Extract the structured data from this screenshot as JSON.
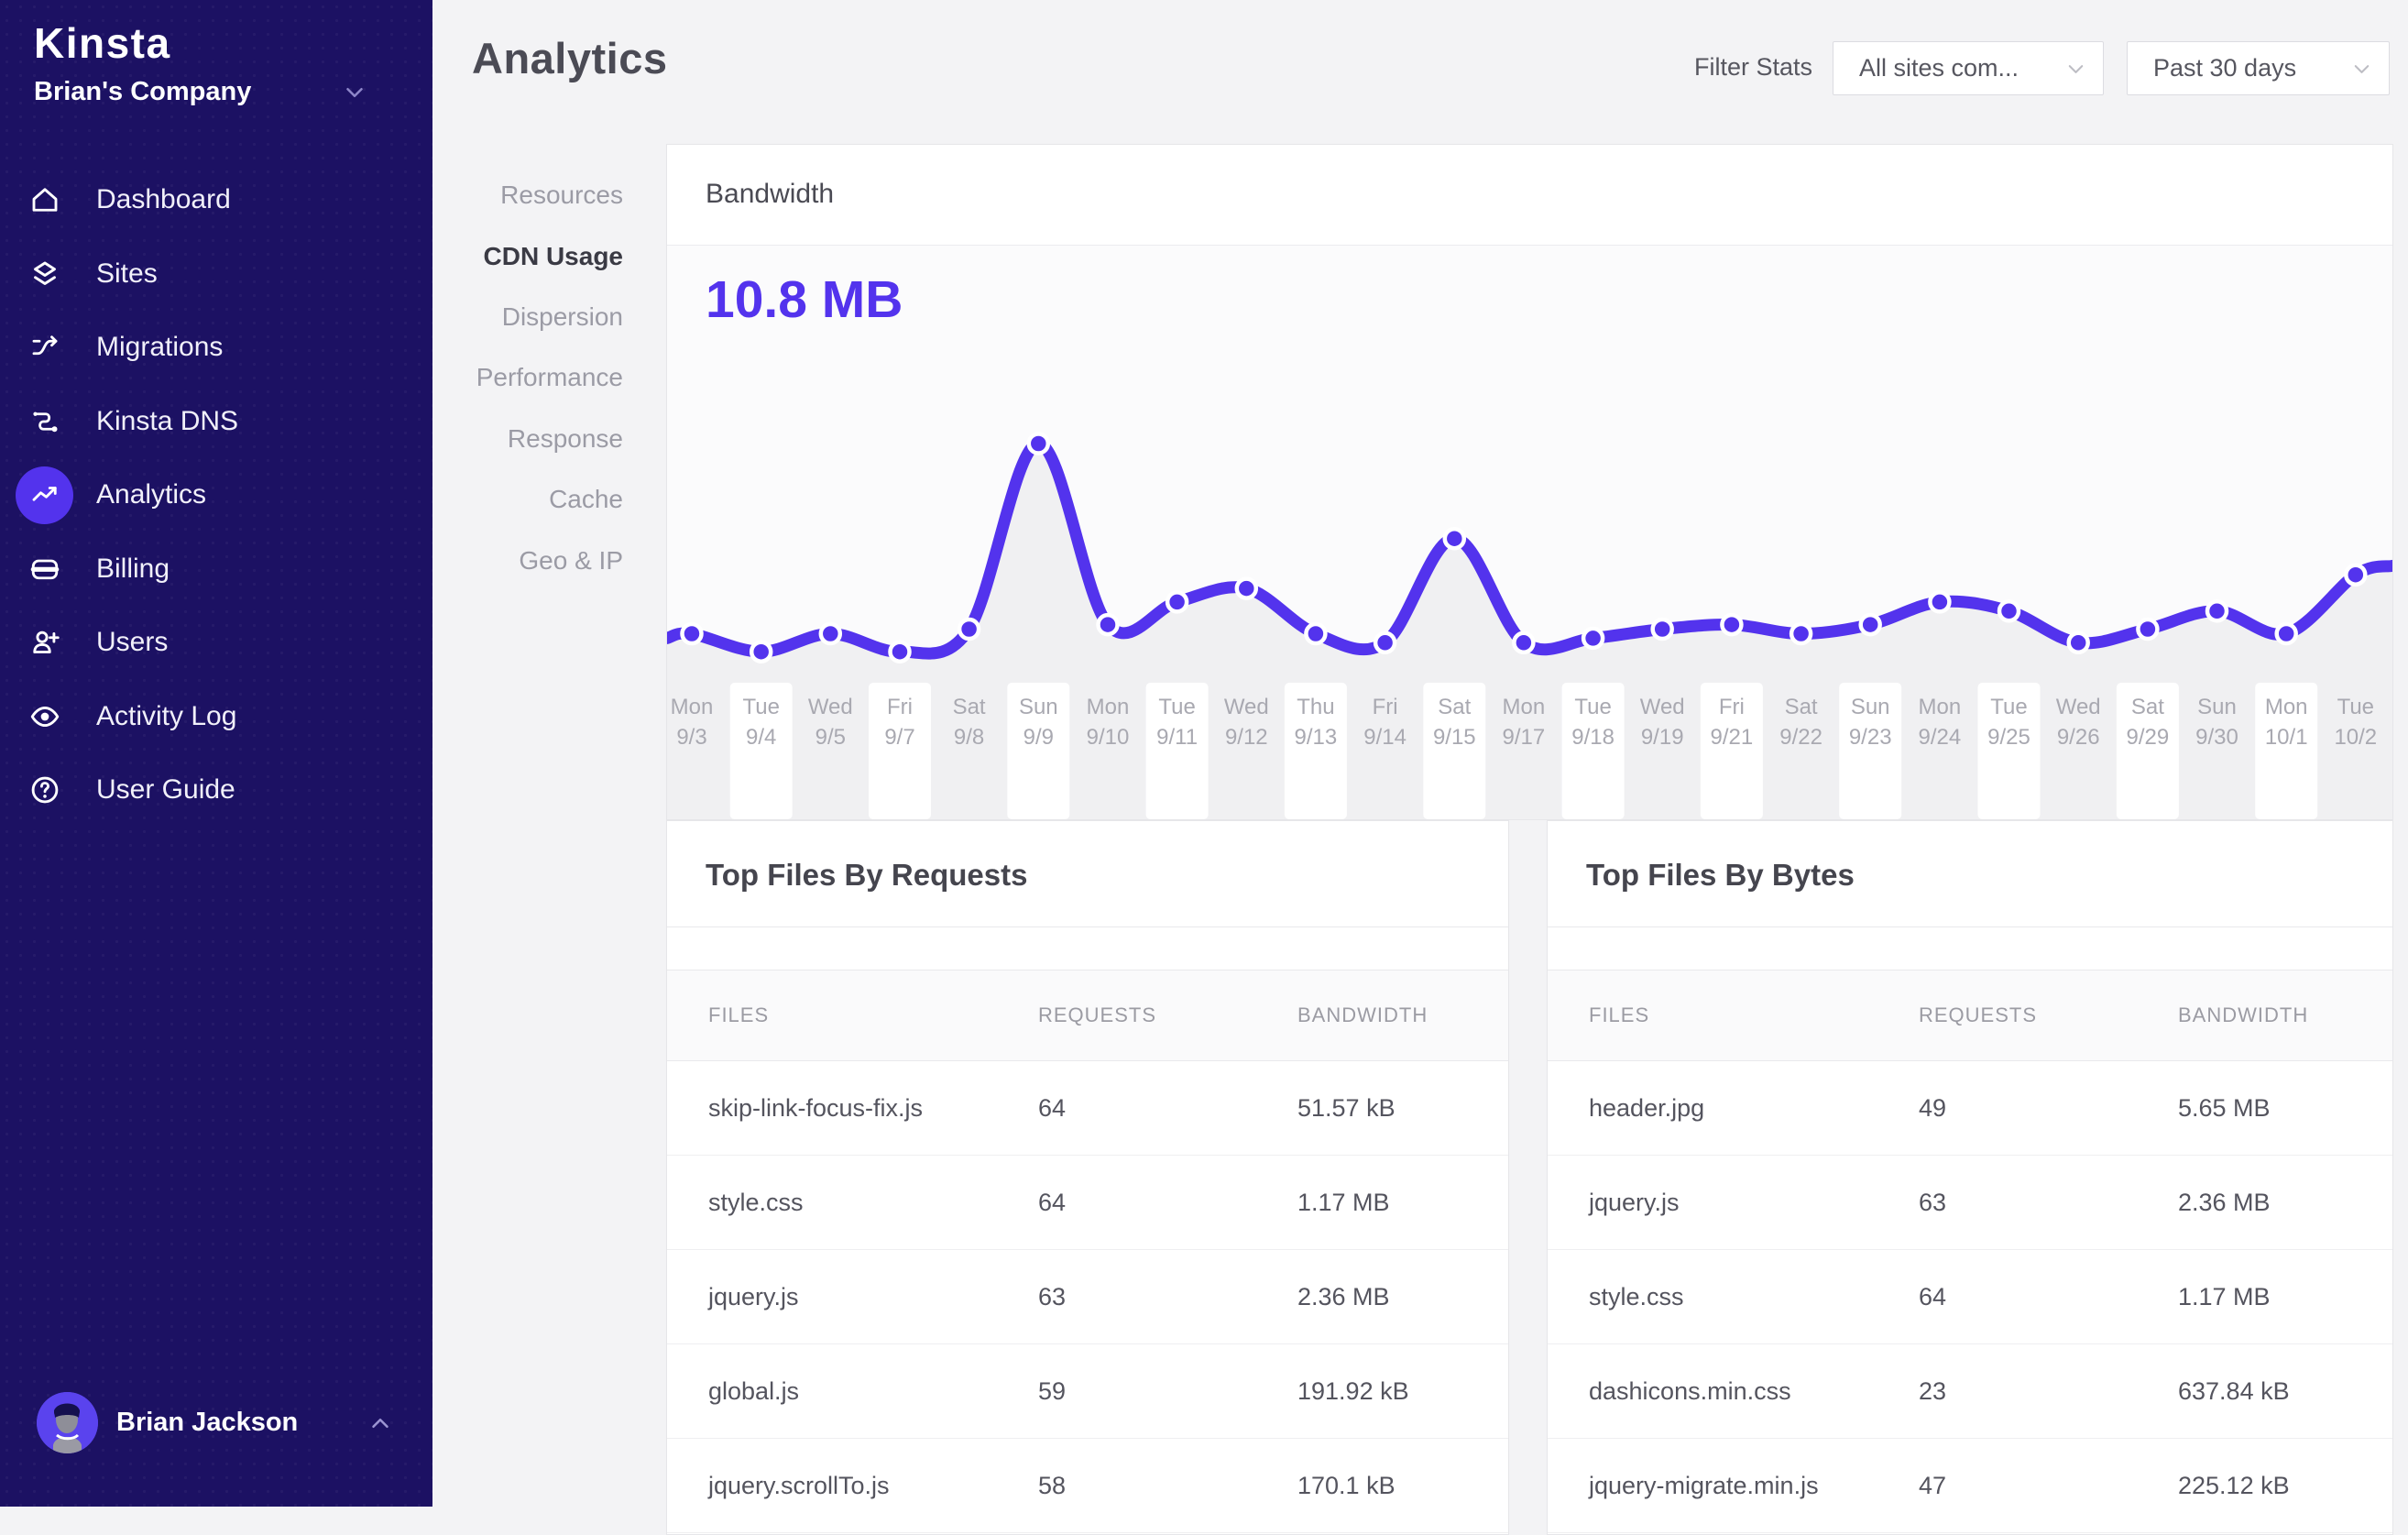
{
  "brand": {
    "logo_text": "Kinsta",
    "company": "Brian's Company"
  },
  "sidebar": {
    "items": [
      {
        "label": "Dashboard",
        "icon": "home-icon",
        "active": false
      },
      {
        "label": "Sites",
        "icon": "layers-icon",
        "active": false
      },
      {
        "label": "Migrations",
        "icon": "migrations-icon",
        "active": false
      },
      {
        "label": "Kinsta DNS",
        "icon": "dns-icon",
        "active": false
      },
      {
        "label": "Analytics",
        "icon": "analytics-icon",
        "active": true
      },
      {
        "label": "Billing",
        "icon": "billing-icon",
        "active": false
      },
      {
        "label": "Users",
        "icon": "user-add-icon",
        "active": false
      },
      {
        "label": "Activity Log",
        "icon": "eye-icon",
        "active": false
      },
      {
        "label": "User Guide",
        "icon": "help-circle-icon",
        "active": false
      }
    ],
    "user": {
      "name": "Brian Jackson"
    }
  },
  "header": {
    "title": "Analytics",
    "filter_label": "Filter Stats",
    "site_filter_value": "All sites com...",
    "range_filter_value": "Past 30 days"
  },
  "subnav": {
    "items": [
      "Resources",
      "CDN Usage",
      "Dispersion",
      "Performance",
      "Response",
      "Cache",
      "Geo & IP"
    ],
    "active_index": 1
  },
  "bandwidth_card": {
    "title": "Bandwidth",
    "total": "10.8 MB"
  },
  "chart_data": {
    "type": "line",
    "title": "Bandwidth",
    "total_label": "10.8 MB",
    "x_labels_day": [
      "Mon",
      "Tue",
      "Wed",
      "Fri",
      "Sat",
      "Sun",
      "Mon",
      "Tue",
      "Wed",
      "Thu",
      "Fri",
      "Sat",
      "Mon",
      "Tue",
      "Wed",
      "Fri",
      "Sat",
      "Sun",
      "Mon",
      "Tue",
      "Wed",
      "Sat",
      "Sun",
      "Mon",
      "Tue"
    ],
    "x_labels_date": [
      "9/3",
      "9/4",
      "9/5",
      "9/7",
      "9/8",
      "9/9",
      "9/10",
      "9/11",
      "9/12",
      "9/13",
      "9/14",
      "9/15",
      "9/17",
      "9/18",
      "9/19",
      "9/21",
      "9/22",
      "9/23",
      "9/24",
      "9/25",
      "9/26",
      "9/29",
      "9/30",
      "10/1",
      "10/2"
    ],
    "values_percent": [
      41,
      37,
      41,
      37,
      42,
      83,
      43,
      48,
      51,
      41,
      39,
      62,
      39,
      40,
      42,
      43,
      41,
      43,
      48,
      46,
      39,
      42,
      46,
      41,
      54
    ],
    "ylim": [
      0,
      100
    ],
    "y_axis_shown": false,
    "grid": false,
    "legend": "none",
    "line_color": "#5333ED",
    "area_color": "#F0F0F2",
    "chip_color": "#FFFFFF",
    "highlighted_label_indices": [
      1,
      3,
      5,
      7,
      9,
      11,
      13,
      15,
      17,
      19,
      21,
      23
    ]
  },
  "tables": [
    {
      "title": "Top Files By Requests",
      "columns": [
        "FILES",
        "REQUESTS",
        "BANDWIDTH"
      ],
      "rows": [
        [
          "skip-link-focus-fix.js",
          "64",
          "51.57 kB"
        ],
        [
          "style.css",
          "64",
          "1.17 MB"
        ],
        [
          "jquery.js",
          "63",
          "2.36 MB"
        ],
        [
          "global.js",
          "59",
          "191.92 kB"
        ],
        [
          "jquery.scrollTo.js",
          "58",
          "170.1 kB"
        ]
      ]
    },
    {
      "title": "Top Files By Bytes",
      "columns": [
        "FILES",
        "REQUESTS",
        "BANDWIDTH"
      ],
      "rows": [
        [
          "header.jpg",
          "49",
          "5.65 MB"
        ],
        [
          "jquery.js",
          "63",
          "2.36 MB"
        ],
        [
          "style.css",
          "64",
          "1.17 MB"
        ],
        [
          "dashicons.min.css",
          "23",
          "637.84 kB"
        ],
        [
          "jquery-migrate.min.js",
          "47",
          "225.12 kB"
        ]
      ]
    }
  ],
  "colors": {
    "accent": "#5333ED",
    "sidebar_bg": "#1C1163",
    "page_bg": "#F3F3F5"
  }
}
